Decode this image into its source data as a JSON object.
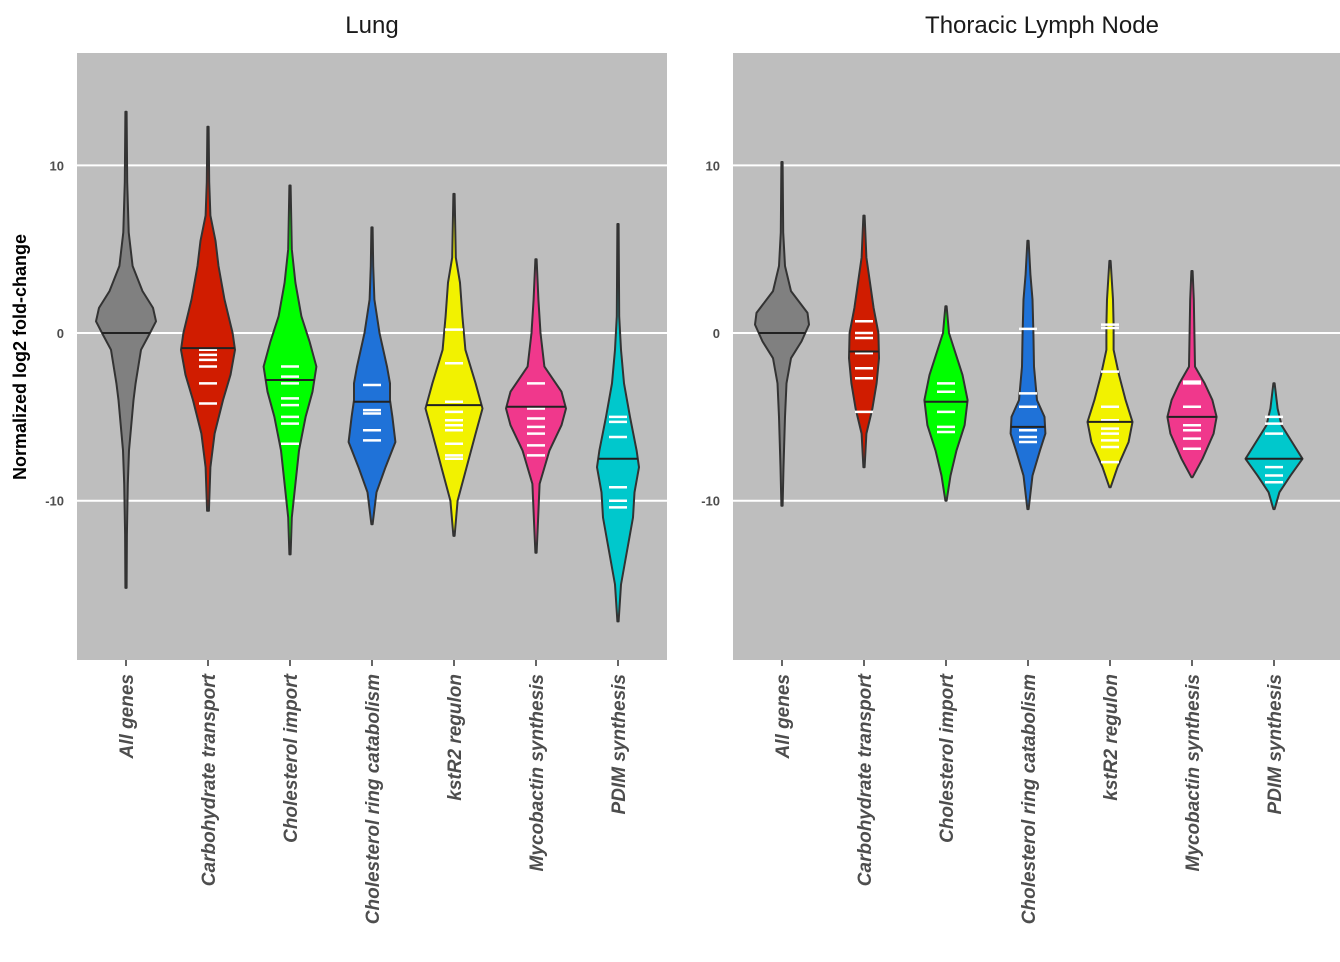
{
  "chart_data": {
    "type": "violin",
    "ylabel": "Normalized log2 fold-change",
    "y_ticks": [
      10,
      0,
      -10
    ],
    "ylim": [
      -19.5,
      16.7
    ],
    "grid": true,
    "legend": "none",
    "categories": [
      "All genes",
      "Carbohydrate transport",
      "Cholesterol import",
      "Cholesterol ring catabolism",
      "kstR2 regulon",
      "Mycobactin synthesis",
      "PDIM synthesis"
    ],
    "colors": [
      "#808080",
      "#d01c00",
      "#00ff00",
      "#1f72d8",
      "#f2f200",
      "#f0388c",
      "#00c8cc"
    ],
    "panels": [
      {
        "title": "Lung",
        "violins": [
          {
            "category": "All genes",
            "min": -15.2,
            "max": 13.2,
            "median": 0.0,
            "density": [
              [
                -15.2,
                0.02
              ],
              [
                -12,
                0.03
              ],
              [
                -9,
                0.06
              ],
              [
                -7,
                0.1
              ],
              [
                -5,
                0.2
              ],
              [
                -4,
                0.25
              ],
              [
                -3,
                0.32
              ],
              [
                -1,
                0.5
              ],
              [
                0,
                0.8
              ],
              [
                0.7,
                1.0
              ],
              [
                1.5,
                0.9
              ],
              [
                2.5,
                0.55
              ],
              [
                4,
                0.22
              ],
              [
                6,
                0.09
              ],
              [
                9,
                0.04
              ],
              [
                13.2,
                0.02
              ]
            ],
            "points": []
          },
          {
            "category": "Carbohydrate transport",
            "min": -10.6,
            "max": 12.3,
            "median": -0.9,
            "density": [
              [
                -10.6,
                0.03
              ],
              [
                -8,
                0.08
              ],
              [
                -6,
                0.22
              ],
              [
                -4,
                0.5
              ],
              [
                -2.5,
                0.75
              ],
              [
                -1,
                0.9
              ],
              [
                0,
                0.82
              ],
              [
                2,
                0.55
              ],
              [
                4,
                0.35
              ],
              [
                5.5,
                0.25
              ],
              [
                7,
                0.08
              ],
              [
                9,
                0.04
              ],
              [
                12.3,
                0.02
              ]
            ],
            "points": [
              -1.0,
              -1.3,
              -1.6,
              -2.0,
              -3.0,
              -4.2
            ]
          },
          {
            "category": "Cholesterol import",
            "min": -13.2,
            "max": 8.8,
            "median": -2.8,
            "density": [
              [
                -13.2,
                0.02
              ],
              [
                -11,
                0.06
              ],
              [
                -9,
                0.18
              ],
              [
                -7,
                0.3
              ],
              [
                -5,
                0.52
              ],
              [
                -3.5,
                0.75
              ],
              [
                -2,
                0.88
              ],
              [
                -0.5,
                0.65
              ],
              [
                1,
                0.38
              ],
              [
                3,
                0.18
              ],
              [
                5,
                0.06
              ],
              [
                8.8,
                0.02
              ]
            ],
            "points": [
              -2.0,
              -2.6,
              -3.0,
              -3.9,
              -4.3,
              -5.0,
              -5.4,
              -6.6
            ]
          },
          {
            "category": "Cholesterol ring catabolism",
            "min": -11.4,
            "max": 6.3,
            "median": -4.1,
            "density": [
              [
                -11.4,
                0.02
              ],
              [
                -9.5,
                0.15
              ],
              [
                -8,
                0.45
              ],
              [
                -6.5,
                0.78
              ],
              [
                -5,
                0.68
              ],
              [
                -4,
                0.6
              ],
              [
                -3,
                0.6
              ],
              [
                -2,
                0.5
              ],
              [
                0,
                0.25
              ],
              [
                2,
                0.08
              ],
              [
                4,
                0.04
              ],
              [
                6.3,
                0.02
              ]
            ],
            "points": [
              -3.1,
              -4.6,
              -4.8,
              -5.8,
              -6.4
            ]
          },
          {
            "category": "kstR2 regulon",
            "min": -12.1,
            "max": 8.3,
            "median": -4.3,
            "density": [
              [
                -12.1,
                0.02
              ],
              [
                -10,
                0.12
              ],
              [
                -8,
                0.42
              ],
              [
                -6,
                0.72
              ],
              [
                -4.5,
                0.95
              ],
              [
                -3,
                0.72
              ],
              [
                -1,
                0.38
              ],
              [
                1,
                0.28
              ],
              [
                3,
                0.2
              ],
              [
                4.5,
                0.06
              ],
              [
                8.3,
                0.02
              ]
            ],
            "points": [
              0.2,
              -1.8,
              -4.1,
              -4.7,
              -5.2,
              -5.5,
              -5.8,
              -6.6,
              -7.3,
              -7.5
            ]
          },
          {
            "category": "Mycobactin synthesis",
            "min": -13.1,
            "max": 4.4,
            "median": -4.4,
            "density": [
              [
                -13.1,
                0.02
              ],
              [
                -11.5,
                0.06
              ],
              [
                -9,
                0.12
              ],
              [
                -7,
                0.45
              ],
              [
                -5.5,
                0.85
              ],
              [
                -4.5,
                1.0
              ],
              [
                -3.5,
                0.85
              ],
              [
                -2,
                0.28
              ],
              [
                0,
                0.15
              ],
              [
                2,
                0.08
              ],
              [
                4.4,
                0.02
              ]
            ],
            "points": [
              -3.0,
              -4.5,
              -5.1,
              -5.6,
              -6.0,
              -6.7,
              -7.3
            ]
          },
          {
            "category": "PDIM synthesis",
            "min": -17.2,
            "max": 6.5,
            "median": -7.5,
            "density": [
              [
                -17.2,
                0.02
              ],
              [
                -15,
                0.1
              ],
              [
                -13,
                0.3
              ],
              [
                -11,
                0.5
              ],
              [
                -9.5,
                0.55
              ],
              [
                -8,
                0.7
              ],
              [
                -7,
                0.62
              ],
              [
                -5,
                0.4
              ],
              [
                -3,
                0.2
              ],
              [
                -1,
                0.1
              ],
              [
                1,
                0.04
              ],
              [
                6.5,
                0.02
              ]
            ],
            "points": [
              -5.0,
              -5.3,
              -6.2,
              -9.2,
              -10.0,
              -10.4
            ]
          }
        ]
      },
      {
        "title": "Thoracic Lymph Node",
        "violins": [
          {
            "category": "All genes",
            "min": -10.3,
            "max": 10.2,
            "median": 0.0,
            "density": [
              [
                -10.3,
                0.02
              ],
              [
                -8,
                0.05
              ],
              [
                -5,
                0.1
              ],
              [
                -3,
                0.15
              ],
              [
                -1.5,
                0.3
              ],
              [
                -0.5,
                0.65
              ],
              [
                0.5,
                0.9
              ],
              [
                1.2,
                0.85
              ],
              [
                2.5,
                0.3
              ],
              [
                4,
                0.1
              ],
              [
                6,
                0.04
              ],
              [
                10.2,
                0.02
              ]
            ],
            "points": []
          },
          {
            "category": "Carbohydrate transport",
            "min": -8.0,
            "max": 7.0,
            "median": -1.1,
            "density": [
              [
                -8,
                0.02
              ],
              [
                -6,
                0.08
              ],
              [
                -4.5,
                0.28
              ],
              [
                -3,
                0.42
              ],
              [
                -1.5,
                0.5
              ],
              [
                0,
                0.48
              ],
              [
                1.5,
                0.32
              ],
              [
                3,
                0.2
              ],
              [
                4.5,
                0.08
              ],
              [
                7,
                0.02
              ]
            ],
            "points": [
              0.7,
              0.0,
              -0.3,
              -1.2,
              -2.1,
              -2.7,
              -4.7
            ]
          },
          {
            "category": "Cholesterol import",
            "min": -10.0,
            "max": 1.6,
            "median": -4.1,
            "density": [
              [
                -10,
                0.02
              ],
              [
                -8.5,
                0.15
              ],
              [
                -7,
                0.35
              ],
              [
                -5.5,
                0.62
              ],
              [
                -4,
                0.72
              ],
              [
                -2.5,
                0.55
              ],
              [
                -1,
                0.28
              ],
              [
                0,
                0.1
              ],
              [
                1.6,
                0.02
              ]
            ],
            "points": [
              -3.0,
              -3.5,
              -4.7,
              -5.6,
              -5.9
            ]
          },
          {
            "category": "Cholesterol ring catabolism",
            "min": -10.5,
            "max": 5.5,
            "median": -5.6,
            "density": [
              [
                -10.5,
                0.02
              ],
              [
                -8.5,
                0.15
              ],
              [
                -7,
                0.4
              ],
              [
                -6,
                0.58
              ],
              [
                -5,
                0.55
              ],
              [
                -4,
                0.3
              ],
              [
                -2,
                0.2
              ],
              [
                0,
                0.18
              ],
              [
                2,
                0.15
              ],
              [
                3.5,
                0.08
              ],
              [
                5.5,
                0.02
              ]
            ],
            "points": [
              0.25,
              -3.6,
              -4.4,
              -5.8,
              -6.2,
              -6.5
            ]
          },
          {
            "category": "kstR2 regulon",
            "min": -9.2,
            "max": 4.3,
            "median": -5.3,
            "density": [
              [
                -9.2,
                0.02
              ],
              [
                -8,
                0.25
              ],
              [
                -6.5,
                0.62
              ],
              [
                -5.3,
                0.75
              ],
              [
                -4,
                0.52
              ],
              [
                -2.5,
                0.3
              ],
              [
                -1,
                0.12
              ],
              [
                0.5,
                0.12
              ],
              [
                2,
                0.1
              ],
              [
                4.3,
                0.02
              ]
            ],
            "points": [
              0.5,
              0.3,
              -2.3,
              -4.4,
              -5.2,
              -5.7,
              -6.0,
              -6.4,
              -6.8,
              -7.7
            ]
          },
          {
            "category": "Mycobactin synthesis",
            "min": -8.6,
            "max": 3.7,
            "median": -5.0,
            "density": [
              [
                -8.6,
                0.02
              ],
              [
                -7.5,
                0.35
              ],
              [
                -6,
                0.72
              ],
              [
                -5,
                0.82
              ],
              [
                -4,
                0.68
              ],
              [
                -3,
                0.42
              ],
              [
                -2,
                0.1
              ],
              [
                0,
                0.08
              ],
              [
                2,
                0.06
              ],
              [
                3.7,
                0.02
              ]
            ],
            "points": [
              -2.9,
              -3.0,
              -4.4,
              -5.5,
              -5.8,
              -6.3,
              -6.9
            ]
          },
          {
            "category": "PDIM synthesis",
            "min": -10.5,
            "max": -3.0,
            "median": -7.5,
            "density": [
              [
                -10.5,
                0.02
              ],
              [
                -9.5,
                0.18
              ],
              [
                -8.5,
                0.55
              ],
              [
                -7.5,
                0.95
              ],
              [
                -6.5,
                0.6
              ],
              [
                -5.5,
                0.25
              ],
              [
                -4.5,
                0.12
              ],
              [
                -3,
                0.02
              ]
            ],
            "points": [
              -5.0,
              -5.4,
              -6.0,
              -8.0,
              -8.5,
              -8.9
            ]
          }
        ]
      }
    ]
  }
}
